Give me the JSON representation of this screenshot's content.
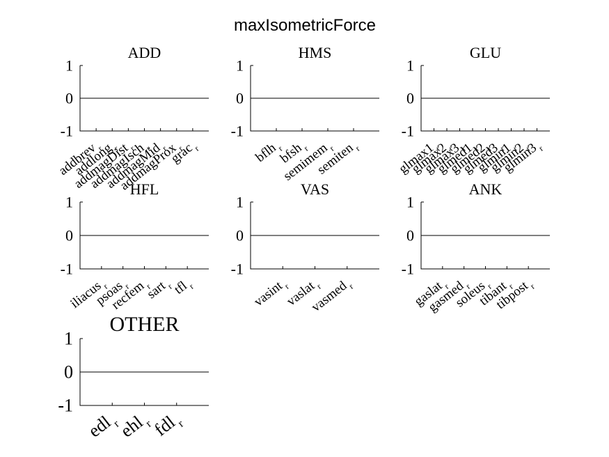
{
  "title": "maxIsometricForce",
  "chart_data": [
    {
      "type": "line",
      "title": "ADD",
      "categories": [
        "addbrev_r",
        "addlong_r",
        "addmagDist_r",
        "addmagIsch_r",
        "addmagMid_r",
        "addmagProx_r",
        "grac_r"
      ],
      "values": [
        0,
        0,
        0,
        0,
        0,
        0,
        0
      ],
      "ylim": [
        -1,
        1
      ],
      "yticks": [
        "1",
        "0",
        "-1"
      ]
    },
    {
      "type": "line",
      "title": "HMS",
      "categories": [
        "bflh_r",
        "bfsh_r",
        "semimem_r",
        "semiten_r"
      ],
      "values": [
        0,
        0,
        0,
        0
      ],
      "ylim": [
        -1,
        1
      ],
      "yticks": [
        "1",
        "0",
        "-1"
      ]
    },
    {
      "type": "line",
      "title": "GLU",
      "categories": [
        "glmax1_r",
        "glmax2_r",
        "glmax3_r",
        "glmed1_r",
        "glmed2_r",
        "glmed3_r",
        "glmin1_r",
        "glmin2_r",
        "glmin3_r"
      ],
      "values": [
        0,
        0,
        0,
        0,
        0,
        0,
        0,
        0,
        0
      ],
      "ylim": [
        -1,
        1
      ],
      "yticks": [
        "1",
        "0",
        "-1"
      ]
    },
    {
      "type": "line",
      "title": "HFL",
      "categories": [
        "iliacus_r",
        "psoas_r",
        "recfem_r",
        "sart_r",
        "tfl_r"
      ],
      "values": [
        0,
        0,
        0,
        0,
        0
      ],
      "ylim": [
        -1,
        1
      ],
      "yticks": [
        "1",
        "0",
        "-1"
      ]
    },
    {
      "type": "line",
      "title": "VAS",
      "categories": [
        "vasint_r",
        "vaslat_r",
        "vasmed_r"
      ],
      "values": [
        0,
        0,
        0
      ],
      "ylim": [
        -1,
        1
      ],
      "yticks": [
        "1",
        "0",
        "-1"
      ]
    },
    {
      "type": "line",
      "title": "ANK",
      "categories": [
        "gaslat_r",
        "gasmed_r",
        "soleus_r",
        "tibant_r",
        "tibpost_r"
      ],
      "values": [
        0,
        0,
        0,
        0,
        0
      ],
      "ylim": [
        -1,
        1
      ],
      "yticks": [
        "1",
        "0",
        "-1"
      ]
    },
    {
      "type": "line",
      "title": "OTHER",
      "categories": [
        "edl_r",
        "ehl_r",
        "fdl_r"
      ],
      "values": [
        0,
        0,
        0
      ],
      "ylim": [
        -1,
        1
      ],
      "yticks": [
        "1",
        "0",
        "-1"
      ]
    }
  ]
}
